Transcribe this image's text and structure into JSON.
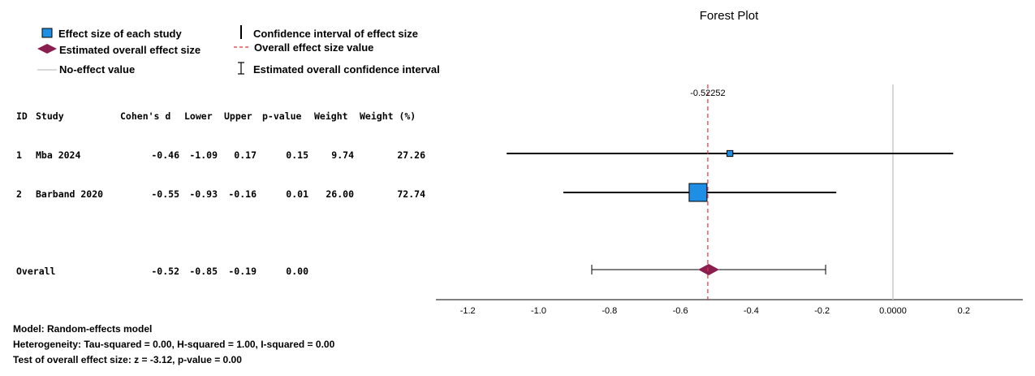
{
  "title": "Forest Plot",
  "legend": {
    "effect_size": "Effect size of each study",
    "estimated_overall": "Estimated overall effect size",
    "no_effect": "No-effect value",
    "ci": "Confidence interval of effect size",
    "overall_value": "Overall effect size value",
    "estimated_overall_ci": "Estimated overall confidence interval"
  },
  "table": {
    "headers": [
      "ID",
      "Study",
      "Cohen's d",
      "Lower",
      "Upper",
      "p-value",
      "Weight",
      "Weight (%)"
    ],
    "rows": [
      {
        "id": "1",
        "study": "Mba 2024",
        "d": "-0.46",
        "lower": "-1.09",
        "upper": "0.17",
        "p": "0.15",
        "weight": "9.74",
        "weight_pct": "27.26"
      },
      {
        "id": "2",
        "study": "Barband 2020",
        "d": "-0.55",
        "lower": "-0.93",
        "upper": "-0.16",
        "p": "0.01",
        "weight": "26.00",
        "weight_pct": "72.74"
      }
    ],
    "overall": {
      "label": "Overall",
      "d": "-0.52",
      "lower": "-0.85",
      "upper": "-0.19",
      "p": "0.00"
    }
  },
  "footer": {
    "model": "Model: Random-effects model",
    "heterogeneity": "Heterogeneity: Tau-squared = 0.00, H-squared = 1.00, I-squared = 0.00",
    "test": "Test of overall effect size: z = -3.12, p-value = 0.00"
  },
  "chart_data": {
    "type": "scatter",
    "title": "Forest Plot",
    "xlim": [
      -1.23,
      0.37
    ],
    "x_ticks": [
      "-1.2",
      "-1.0",
      "-0.8",
      "-0.6",
      "-0.4",
      "-0.2",
      "0.0000",
      "0.2"
    ],
    "x_tick_values": [
      -1.2,
      -1.0,
      -0.8,
      -0.6,
      -0.4,
      -0.2,
      0.0,
      0.2
    ],
    "no_effect_value": 0.0,
    "overall_effect_label": "-0.52252",
    "overall_effect_value": -0.52252,
    "studies": [
      {
        "name": "Mba 2024",
        "d": -0.46,
        "lower": -1.09,
        "upper": 0.17,
        "weight_pct": 27.26
      },
      {
        "name": "Barband 2020",
        "d": -0.55,
        "lower": -0.93,
        "upper": -0.16,
        "weight_pct": 72.74
      }
    ],
    "overall": {
      "d": -0.52,
      "lower": -0.85,
      "upper": -0.19
    },
    "colors": {
      "study_marker": "#1f8fe6",
      "overall_marker": "#8b1e4f",
      "overall_line": "#e0303a",
      "no_effect_line": "#cccccc"
    }
  }
}
